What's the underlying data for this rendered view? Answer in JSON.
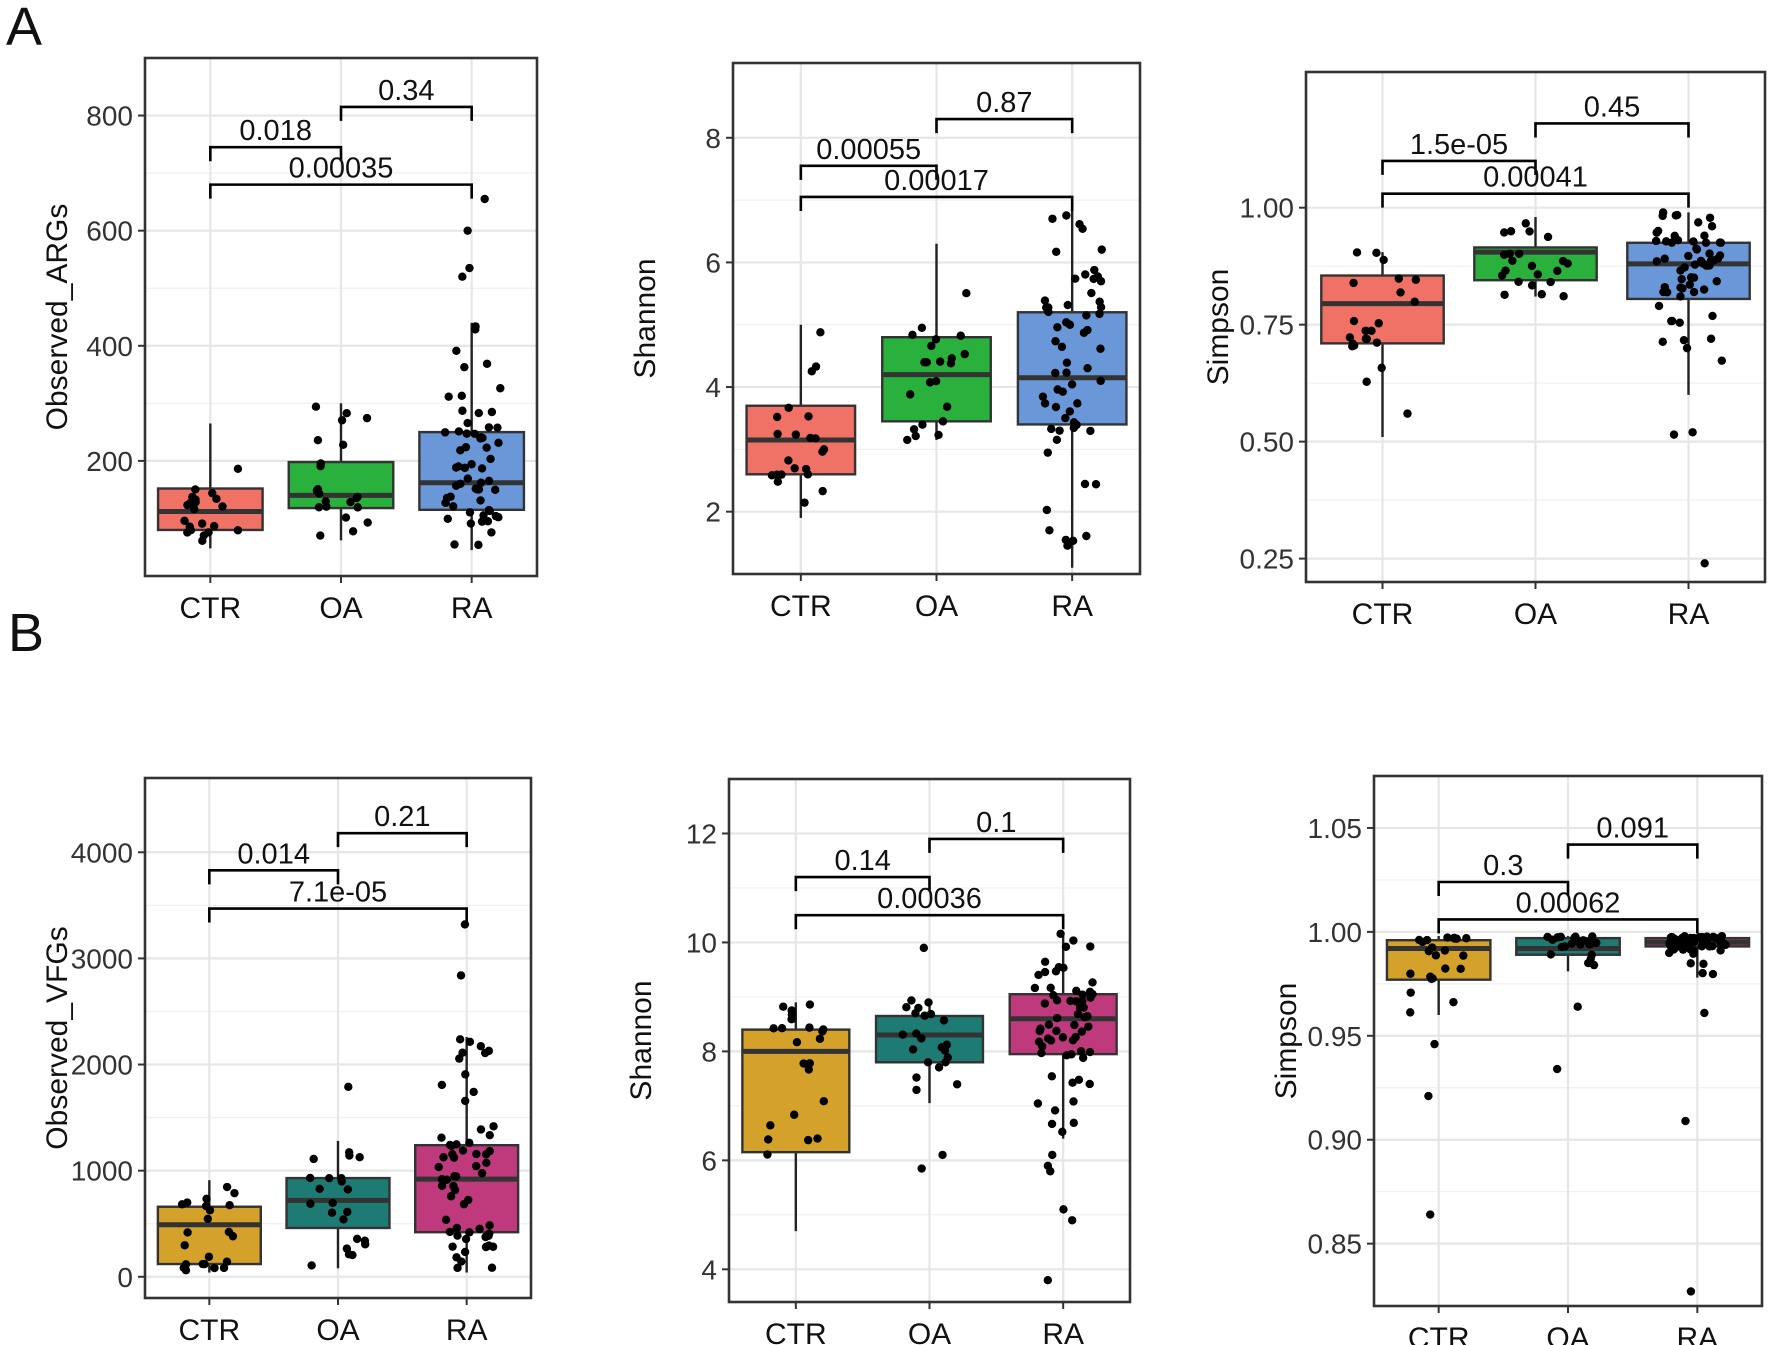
{
  "panel_labels": {
    "a": "A",
    "b": "B"
  },
  "chart_data": [
    {
      "type": "boxplot",
      "panel": "A",
      "ylabel": "Observed_ARGs",
      "categories": [
        "CTR",
        "OA",
        "RA"
      ],
      "ylim": [
        0,
        900
      ],
      "yticks": [
        200,
        400,
        600,
        800
      ],
      "colors": [
        "#F07267",
        "#2AB03C",
        "#6A97D8"
      ],
      "boxes": [
        {
          "q1": 80,
          "median": 112,
          "q3": 152,
          "lower": 48,
          "upper": 265
        },
        {
          "q1": 118,
          "median": 140,
          "q3": 198,
          "lower": 62,
          "upper": 300
        },
        {
          "q1": 115,
          "median": 162,
          "q3": 250,
          "lower": 45,
          "upper": 440
        }
      ],
      "outliers": [
        [],
        [],
        [
          520,
          535,
          600,
          655
        ]
      ],
      "comparisons": [
        {
          "label": "0.018",
          "from": 0,
          "to": 1,
          "y": 745
        },
        {
          "label": "0.34",
          "from": 1,
          "to": 2,
          "y": 815
        },
        {
          "label": "0.00035",
          "from": 0,
          "to": 2,
          "y": 680
        }
      ]
    },
    {
      "type": "boxplot",
      "panel": "A",
      "ylabel": "Shannon",
      "categories": [
        "CTR",
        "OA",
        "RA"
      ],
      "ylim": [
        1.0,
        9.2
      ],
      "yticks": [
        2,
        4,
        6,
        8
      ],
      "colors": [
        "#F07267",
        "#2AB03C",
        "#6A97D8"
      ],
      "boxes": [
        {
          "q1": 2.6,
          "median": 3.15,
          "q3": 3.7,
          "lower": 1.9,
          "upper": 5.0
        },
        {
          "q1": 3.45,
          "median": 4.2,
          "q3": 4.8,
          "lower": 3.15,
          "upper": 6.3
        },
        {
          "q1": 3.4,
          "median": 4.15,
          "q3": 5.2,
          "lower": 1.1,
          "upper": 6.85
        }
      ],
      "outliers": [
        [],
        [],
        []
      ],
      "comparisons": [
        {
          "label": "0.00055",
          "from": 0,
          "to": 1,
          "y": 7.55
        },
        {
          "label": "0.87",
          "from": 1,
          "to": 2,
          "y": 8.3
        },
        {
          "label": "0.00017",
          "from": 0,
          "to": 2,
          "y": 7.05
        }
      ]
    },
    {
      "type": "boxplot",
      "panel": "A",
      "ylabel": "Simpson",
      "categories": [
        "CTR",
        "OA",
        "RA"
      ],
      "ylim": [
        0.2,
        1.29
      ],
      "yticks": [
        0.25,
        0.5,
        0.75,
        1.0
      ],
      "colors": [
        "#F07267",
        "#2AB03C",
        "#6A97D8"
      ],
      "boxes": [
        {
          "q1": 0.71,
          "median": 0.795,
          "q3": 0.855,
          "lower": 0.51,
          "upper": 0.905
        },
        {
          "q1": 0.845,
          "median": 0.905,
          "q3": 0.915,
          "lower": 0.81,
          "upper": 0.98
        },
        {
          "q1": 0.805,
          "median": 0.88,
          "q3": 0.925,
          "lower": 0.6,
          "upper": 0.99
        }
      ],
      "outliers": [
        [],
        [],
        [
          0.52,
          0.515,
          0.24
        ]
      ],
      "comparisons": [
        {
          "label": "1.5e-05",
          "from": 0,
          "to": 1,
          "y": 1.1
        },
        {
          "label": "0.45",
          "from": 1,
          "to": 2,
          "y": 1.18
        },
        {
          "label": "0.00041",
          "from": 0,
          "to": 2,
          "y": 1.03
        }
      ]
    },
    {
      "type": "boxplot",
      "panel": "B",
      "ylabel": "Observed_VFGs",
      "categories": [
        "CTR",
        "OA",
        "RA"
      ],
      "ylim": [
        -200,
        4700
      ],
      "yticks": [
        0,
        1000,
        2000,
        3000,
        4000
      ],
      "colors": [
        "#D4A12A",
        "#1E7B73",
        "#BE3A7C"
      ],
      "boxes": [
        {
          "q1": 120,
          "median": 490,
          "q3": 660,
          "lower": 40,
          "upper": 910
        },
        {
          "q1": 460,
          "median": 720,
          "q3": 930,
          "lower": 80,
          "upper": 1280
        },
        {
          "q1": 420,
          "median": 920,
          "q3": 1240,
          "lower": 40,
          "upper": 2260
        }
      ],
      "outliers": [
        [],
        [
          1790
        ],
        [
          2840,
          3320
        ]
      ],
      "comparisons": [
        {
          "label": "0.014",
          "from": 0,
          "to": 1,
          "y": 3830
        },
        {
          "label": "0.21",
          "from": 1,
          "to": 2,
          "y": 4180
        },
        {
          "label": "7.1e-05",
          "from": 0,
          "to": 2,
          "y": 3470
        }
      ]
    },
    {
      "type": "boxplot",
      "panel": "B",
      "ylabel": "Shannon",
      "categories": [
        "CTR",
        "OA",
        "RA"
      ],
      "ylim": [
        3.4,
        13.0
      ],
      "yticks": [
        4,
        6,
        8,
        10,
        12
      ],
      "colors": [
        "#D4A12A",
        "#1E7B73",
        "#BE3A7C"
      ],
      "boxes": [
        {
          "q1": 6.15,
          "median": 8.0,
          "q3": 8.4,
          "lower": 4.7,
          "upper": 8.9
        },
        {
          "q1": 7.8,
          "median": 8.3,
          "q3": 8.65,
          "lower": 7.05,
          "upper": 8.95
        },
        {
          "q1": 7.95,
          "median": 8.6,
          "q3": 9.05,
          "lower": 6.4,
          "upper": 10.2
        }
      ],
      "outliers": [
        [],
        [
          9.9,
          6.1,
          5.85
        ],
        [
          3.8,
          4.9,
          5.1,
          5.8,
          5.9,
          6.1
        ]
      ],
      "comparisons": [
        {
          "label": "0.14",
          "from": 0,
          "to": 1,
          "y": 11.2
        },
        {
          "label": "0.1",
          "from": 1,
          "to": 2,
          "y": 11.9
        },
        {
          "label": "0.00036",
          "from": 0,
          "to": 2,
          "y": 10.5
        }
      ]
    },
    {
      "type": "boxplot",
      "panel": "B",
      "ylabel": "Simpson",
      "categories": [
        "CTR",
        "OA",
        "RA"
      ],
      "ylim": [
        0.82,
        1.075
      ],
      "yticks": [
        0.85,
        0.9,
        0.95,
        1.0,
        1.05
      ],
      "colors": [
        "#D4A12A",
        "#1E7B73",
        "#BE3A7C"
      ],
      "boxes": [
        {
          "q1": 0.977,
          "median": 0.992,
          "q3": 0.996,
          "lower": 0.96,
          "upper": 0.998
        },
        {
          "q1": 0.989,
          "median": 0.992,
          "q3": 0.997,
          "lower": 0.981,
          "upper": 0.998
        },
        {
          "q1": 0.993,
          "median": 0.995,
          "q3": 0.997,
          "lower": 0.978,
          "upper": 0.998
        }
      ],
      "outliers": [
        [
          0.946,
          0.921,
          0.864
        ],
        [
          0.964,
          0.934
        ],
        [
          0.961,
          0.909,
          0.827
        ]
      ],
      "comparisons": [
        {
          "label": "0.3",
          "from": 0,
          "to": 1,
          "y": 1.024
        },
        {
          "label": "0.091",
          "from": 1,
          "to": 2,
          "y": 1.042
        },
        {
          "label": "0.00062",
          "from": 0,
          "to": 2,
          "y": 1.006
        }
      ]
    }
  ]
}
